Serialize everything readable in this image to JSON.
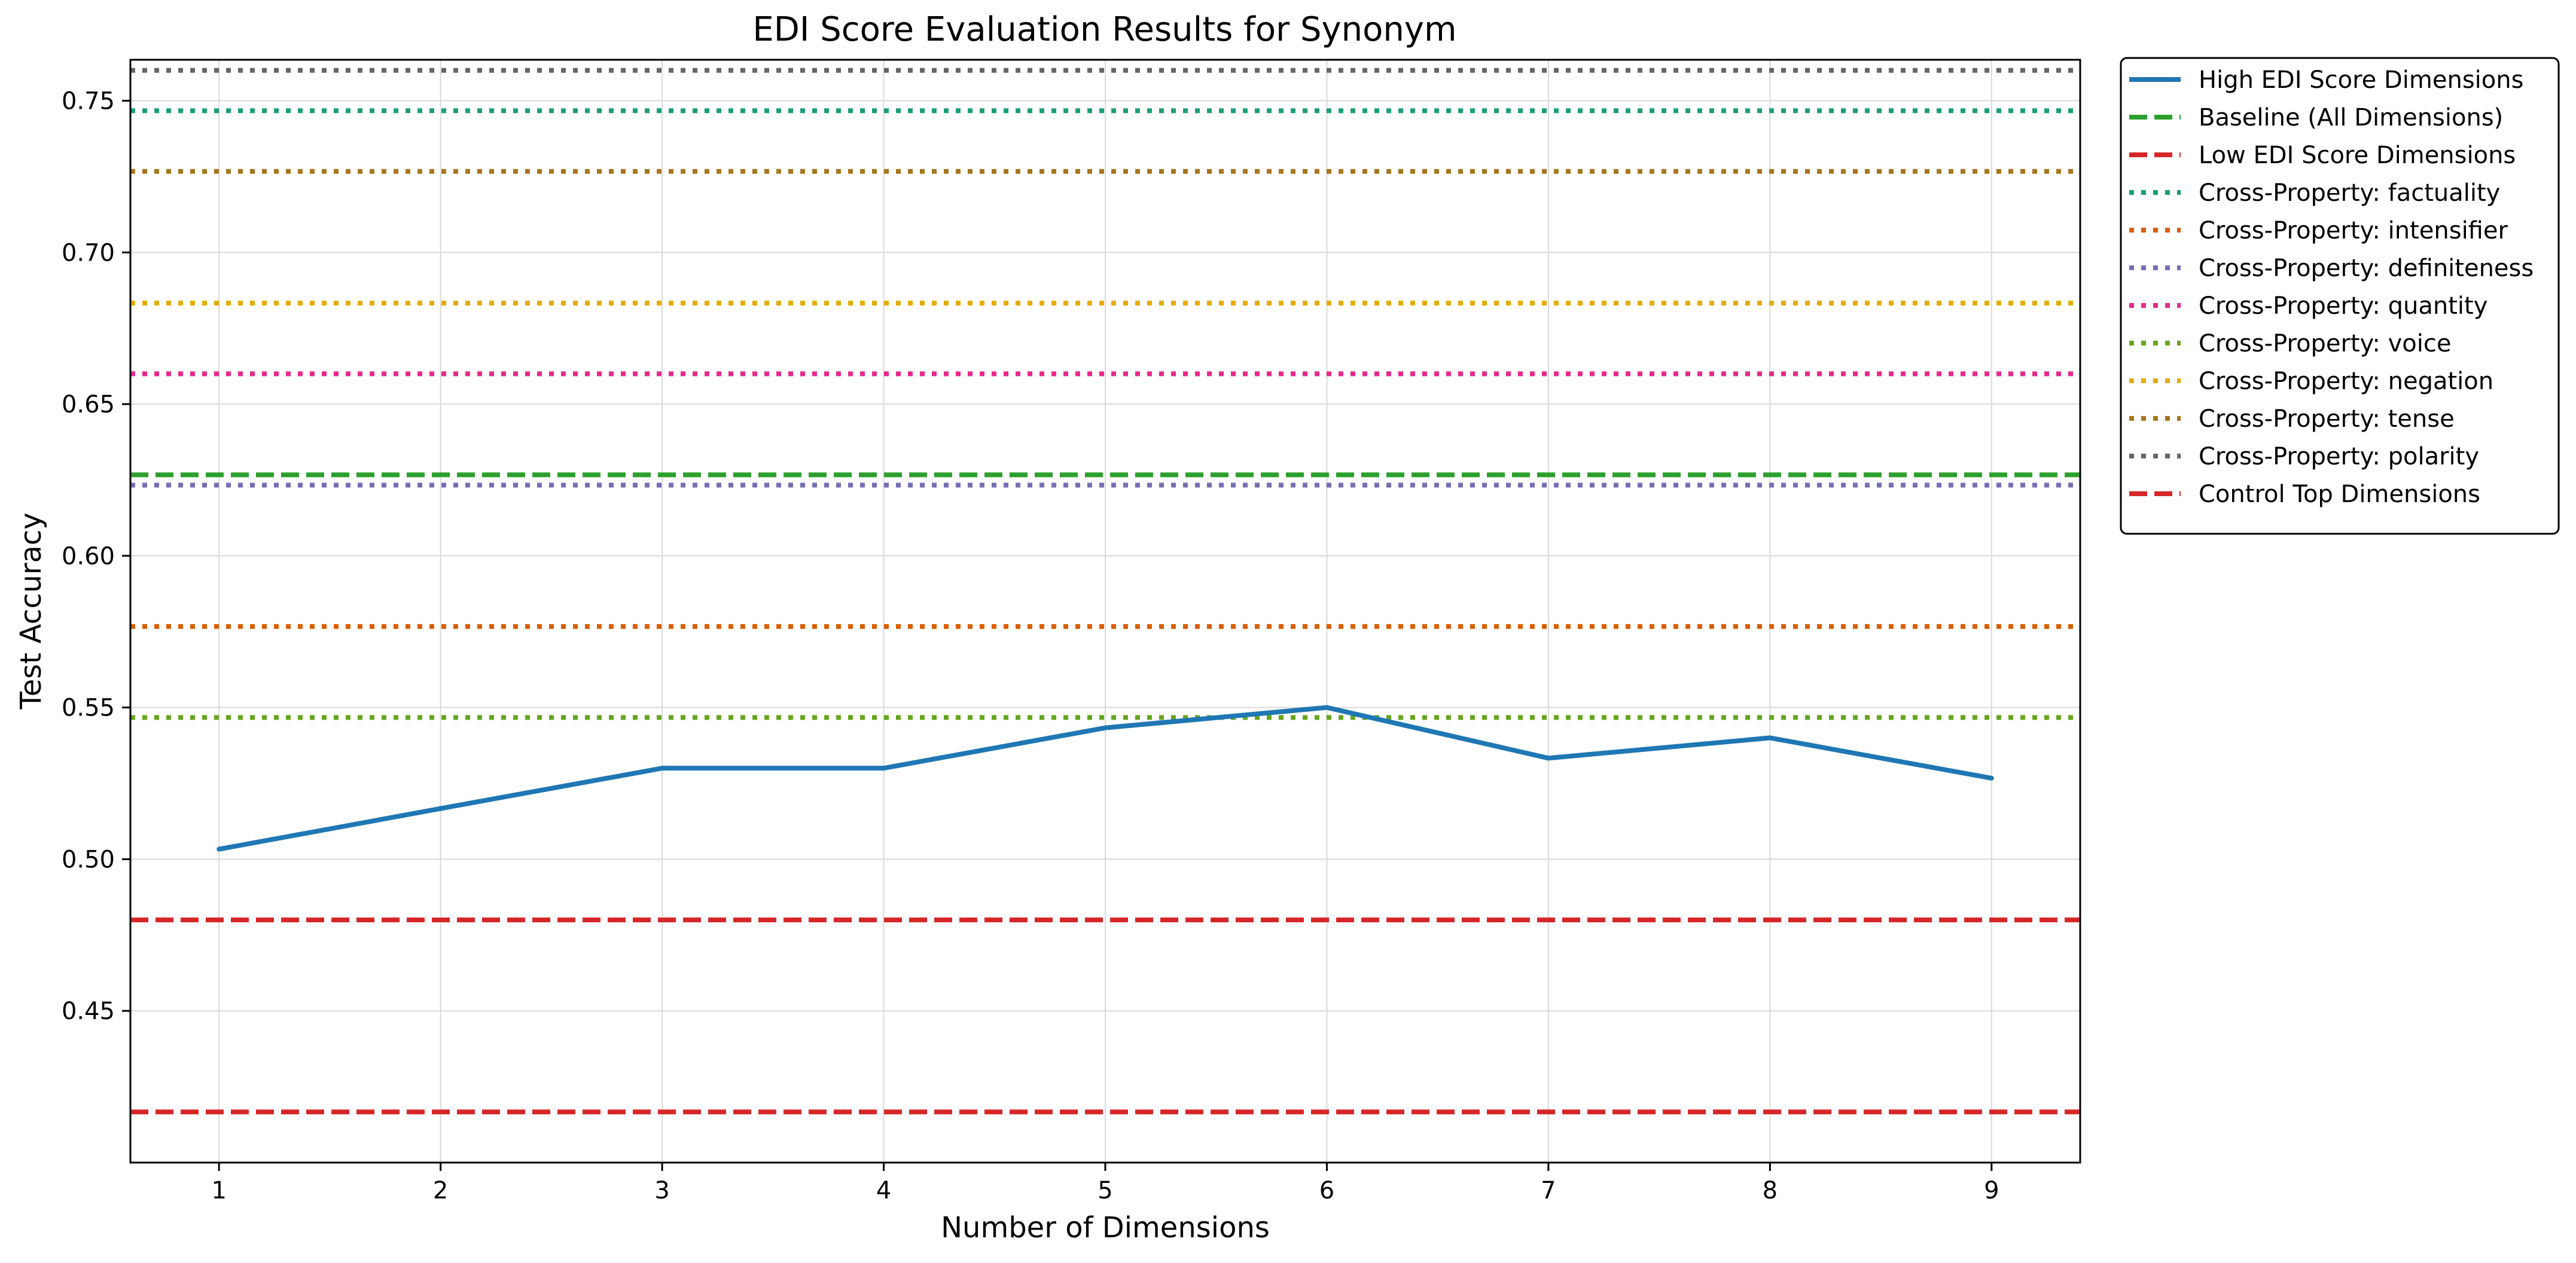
{
  "chart_data": {
    "type": "line",
    "title": "EDI Score Evaluation Results for Synonym",
    "xlabel": "Number of Dimensions",
    "ylabel": "Test Accuracy",
    "x": [
      1,
      2,
      3,
      4,
      5,
      6,
      7,
      8,
      9
    ],
    "xticks": [
      "1",
      "2",
      "3",
      "4",
      "5",
      "6",
      "7",
      "8",
      "9"
    ],
    "yticks": [
      "0.45",
      "0.50",
      "0.55",
      "0.60",
      "0.65",
      "0.70",
      "0.75"
    ],
    "xlim": [
      0.6,
      9.4
    ],
    "ylim": [
      0.4,
      0.7635
    ],
    "grid": true,
    "legend_position": "outside-upper-right",
    "series": [
      {
        "name": "High EDI Score Dimensions",
        "kind": "line",
        "style": "solid",
        "color": "#1f77b4",
        "values": [
          0.5033,
          0.5167,
          0.53,
          0.53,
          0.5433,
          0.55,
          0.5333,
          0.54,
          0.5267
        ]
      },
      {
        "name": "Baseline (All Dimensions)",
        "kind": "hline",
        "style": "dashed",
        "color": "#2ca02c",
        "value": 0.6267
      },
      {
        "name": "Low EDI Score Dimensions",
        "kind": "hline",
        "style": "dashed",
        "color": "#d62728",
        "value": 0.48
      },
      {
        "name": "Cross-Property: factuality",
        "kind": "hline",
        "style": "dotted",
        "color": "#1b9e77",
        "value": 0.7467
      },
      {
        "name": "Cross-Property: intensifier",
        "kind": "hline",
        "style": "dotted",
        "color": "#d95f02",
        "value": 0.5767
      },
      {
        "name": "Cross-Property: definiteness",
        "kind": "hline",
        "style": "dotted",
        "color": "#7570b3",
        "value": 0.6233
      },
      {
        "name": "Cross-Property: quantity",
        "kind": "hline",
        "style": "dotted",
        "color": "#e7298a",
        "value": 0.66
      },
      {
        "name": "Cross-Property: voice",
        "kind": "hline",
        "style": "dotted",
        "color": "#66a61e",
        "value": 0.5467
      },
      {
        "name": "Cross-Property: negation",
        "kind": "hline",
        "style": "dotted",
        "color": "#e6ab02",
        "value": 0.6833
      },
      {
        "name": "Cross-Property: tense",
        "kind": "hline",
        "style": "dotted",
        "color": "#a6761d",
        "value": 0.7267
      },
      {
        "name": "Cross-Property: polarity",
        "kind": "hline",
        "style": "dotted",
        "color": "#666666",
        "value": 0.76
      },
      {
        "name": "Control Top Dimensions",
        "kind": "hline",
        "style": "dashed",
        "color": "#d62728",
        "value": 0.4167
      }
    ]
  }
}
